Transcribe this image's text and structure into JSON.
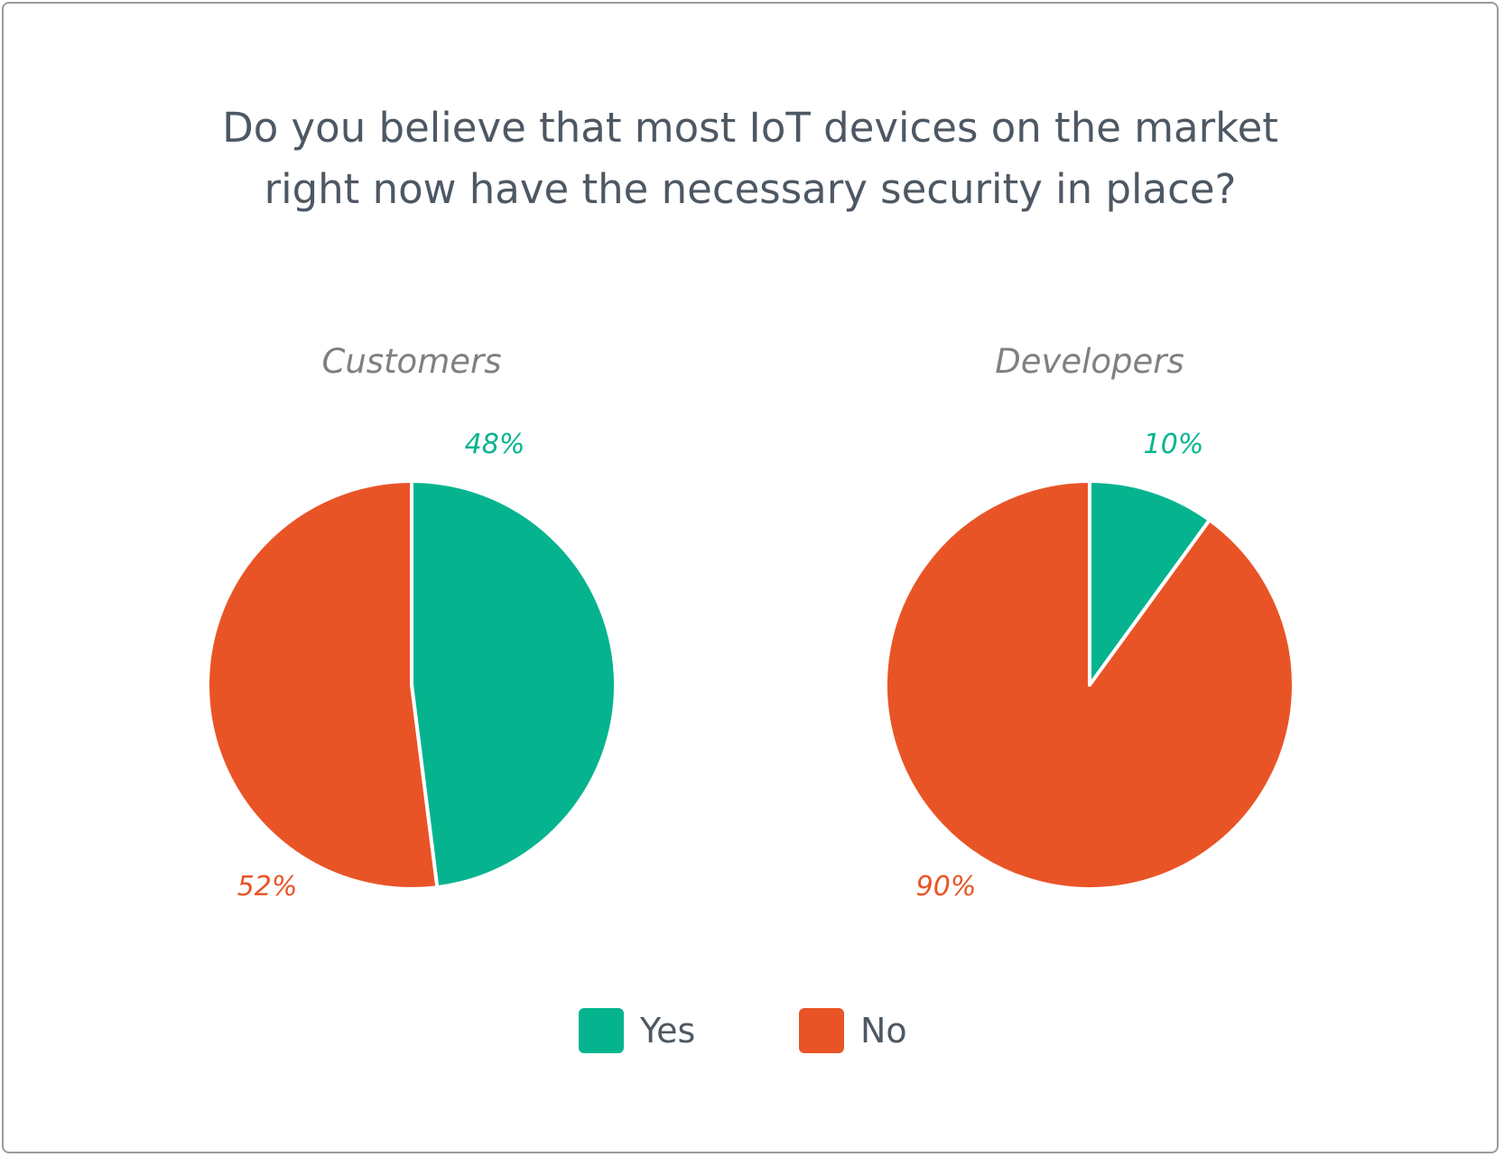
{
  "title_lines": [
    "Do you believe that most IoT devices on the market",
    "right now have the necessary security in place?"
  ],
  "colors": {
    "yes": "#05b48f",
    "no": "#e95427",
    "title": "#4d5863",
    "subtitle": "#808080"
  },
  "legend": [
    {
      "label": "Yes",
      "color": "#05b48f"
    },
    {
      "label": "No",
      "color": "#e95427"
    }
  ],
  "chart_data": [
    {
      "type": "pie",
      "title": "Customers",
      "slices": [
        {
          "label": "Yes",
          "value": 48,
          "text": "48%",
          "color": "#05b48f"
        },
        {
          "label": "No",
          "value": 52,
          "text": "52%",
          "color": "#e95427"
        }
      ]
    },
    {
      "type": "pie",
      "title": "Developers",
      "slices": [
        {
          "label": "Yes",
          "value": 10,
          "text": "10%",
          "color": "#05b48f"
        },
        {
          "label": "No",
          "value": 90,
          "text": "90%",
          "color": "#e95427"
        }
      ]
    }
  ]
}
